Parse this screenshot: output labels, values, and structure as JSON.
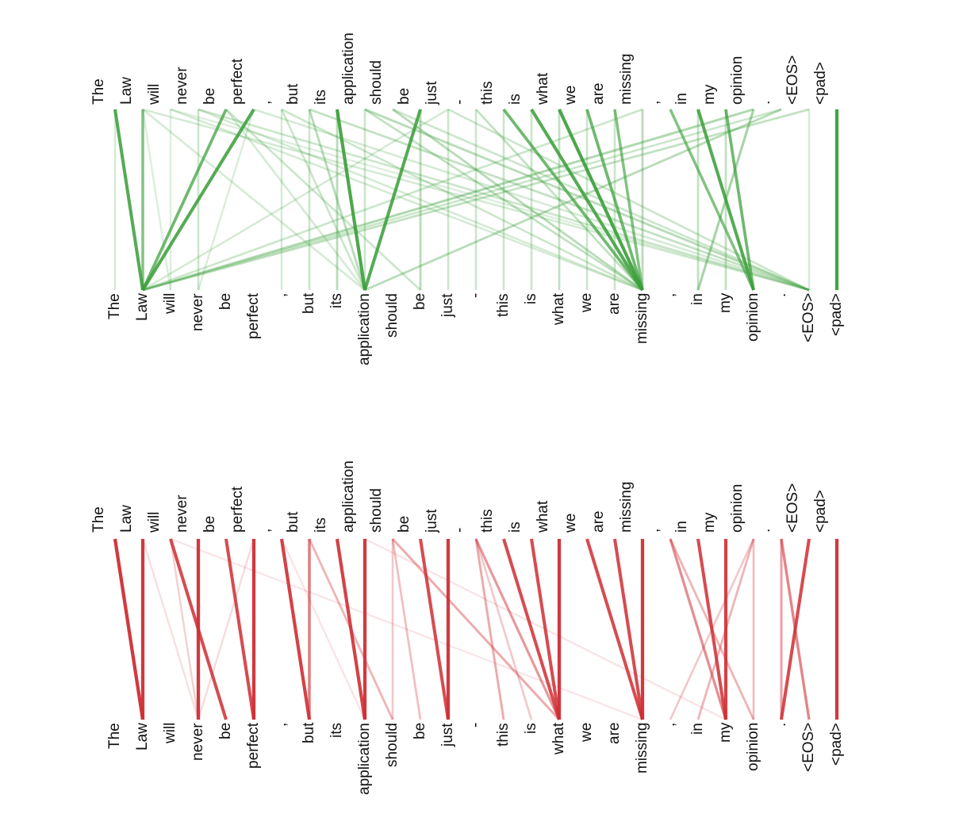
{
  "tokens": [
    "The",
    "Law",
    "will",
    "never",
    "be",
    "perfect",
    ",",
    "but",
    "its",
    "application",
    "should",
    "be",
    "just",
    "-",
    "this",
    "is",
    "what",
    "we",
    "are",
    "missing",
    ",",
    "in",
    "my",
    "opinion",
    ".",
    "<EOS>",
    "<pad>"
  ],
  "colors": {
    "green": "#3a9e3a",
    "red": "#cf2f35"
  },
  "panels": [
    {
      "id": "green",
      "color": "green",
      "links": [
        [
          0,
          1,
          0.85
        ],
        [
          0,
          0,
          0.15
        ],
        [
          1,
          1,
          0.6
        ],
        [
          1,
          2,
          0.1
        ],
        [
          1,
          9,
          0.15
        ],
        [
          2,
          2,
          0.1
        ],
        [
          2,
          19,
          0.15
        ],
        [
          2,
          25,
          0.1
        ],
        [
          3,
          3,
          0.2
        ],
        [
          3,
          19,
          0.15
        ],
        [
          3,
          25,
          0.2
        ],
        [
          4,
          1,
          0.7
        ],
        [
          4,
          9,
          0.15
        ],
        [
          4,
          11,
          0.2
        ],
        [
          5,
          1,
          0.85
        ],
        [
          5,
          3,
          0.12
        ],
        [
          6,
          6,
          0.15
        ],
        [
          6,
          9,
          0.2
        ],
        [
          6,
          19,
          0.2
        ],
        [
          7,
          7,
          0.2
        ],
        [
          7,
          9,
          0.3
        ],
        [
          7,
          25,
          0.25
        ],
        [
          8,
          9,
          0.9
        ],
        [
          8,
          8,
          0.3
        ],
        [
          9,
          9,
          0.2
        ],
        [
          9,
          19,
          0.25
        ],
        [
          9,
          25,
          0.3
        ],
        [
          10,
          19,
          0.3
        ],
        [
          10,
          25,
          0.2
        ],
        [
          11,
          9,
          0.85
        ],
        [
          11,
          11,
          0.3
        ],
        [
          12,
          12,
          0.2
        ],
        [
          12,
          1,
          0.15
        ],
        [
          13,
          13,
          0.2
        ],
        [
          13,
          19,
          0.25
        ],
        [
          14,
          19,
          0.7
        ],
        [
          14,
          14,
          0.2
        ],
        [
          15,
          19,
          0.85
        ],
        [
          15,
          15,
          0.2
        ],
        [
          16,
          19,
          0.9
        ],
        [
          16,
          16,
          0.25
        ],
        [
          17,
          19,
          0.7
        ],
        [
          17,
          17,
          0.2
        ],
        [
          18,
          19,
          0.6
        ],
        [
          18,
          18,
          0.2
        ],
        [
          19,
          19,
          0.3
        ],
        [
          19,
          1,
          0.2
        ],
        [
          20,
          23,
          0.6
        ],
        [
          21,
          23,
          0.85
        ],
        [
          21,
          21,
          0.25
        ],
        [
          22,
          23,
          0.7
        ],
        [
          22,
          22,
          0.25
        ],
        [
          23,
          21,
          0.4
        ],
        [
          23,
          1,
          0.35
        ],
        [
          24,
          9,
          0.3
        ],
        [
          24,
          1,
          0.2
        ],
        [
          25,
          1,
          0.25
        ],
        [
          25,
          25,
          0.15
        ],
        [
          26,
          26,
          0.95
        ],
        [
          1,
          25,
          0.15
        ],
        [
          5,
          25,
          0.15
        ],
        [
          12,
          25,
          0.2
        ]
      ]
    },
    {
      "id": "red",
      "color": "red",
      "links": [
        [
          0,
          1,
          0.95
        ],
        [
          1,
          1,
          0.95
        ],
        [
          2,
          4,
          0.85
        ],
        [
          2,
          3,
          0.15
        ],
        [
          3,
          3,
          0.95
        ],
        [
          4,
          5,
          0.85
        ],
        [
          5,
          5,
          0.95
        ],
        [
          5,
          3,
          0.1
        ],
        [
          6,
          7,
          0.9
        ],
        [
          7,
          7,
          0.6
        ],
        [
          7,
          10,
          0.3
        ],
        [
          8,
          9,
          0.9
        ],
        [
          9,
          9,
          0.95
        ],
        [
          10,
          11,
          0.25
        ],
        [
          10,
          16,
          0.35
        ],
        [
          10,
          10,
          0.2
        ],
        [
          11,
          12,
          0.85
        ],
        [
          12,
          12,
          0.95
        ],
        [
          13,
          14,
          0.35
        ],
        [
          13,
          16,
          0.45
        ],
        [
          13,
          15,
          0.2
        ],
        [
          14,
          16,
          0.85
        ],
        [
          15,
          16,
          0.85
        ],
        [
          16,
          16,
          0.95
        ],
        [
          17,
          19,
          0.85
        ],
        [
          18,
          19,
          0.85
        ],
        [
          19,
          19,
          0.95
        ],
        [
          20,
          22,
          0.5
        ],
        [
          20,
          23,
          0.3
        ],
        [
          21,
          22,
          0.85
        ],
        [
          22,
          22,
          0.9
        ],
        [
          23,
          20,
          0.2
        ],
        [
          23,
          21,
          0.3
        ],
        [
          23,
          23,
          0.25
        ],
        [
          24,
          25,
          0.55
        ],
        [
          24,
          24,
          0.4
        ],
        [
          25,
          24,
          0.85
        ],
        [
          26,
          26,
          0.95
        ],
        [
          1,
          3,
          0.08
        ],
        [
          2,
          19,
          0.05
        ],
        [
          6,
          9,
          0.06
        ],
        [
          9,
          22,
          0.06
        ]
      ]
    }
  ]
}
